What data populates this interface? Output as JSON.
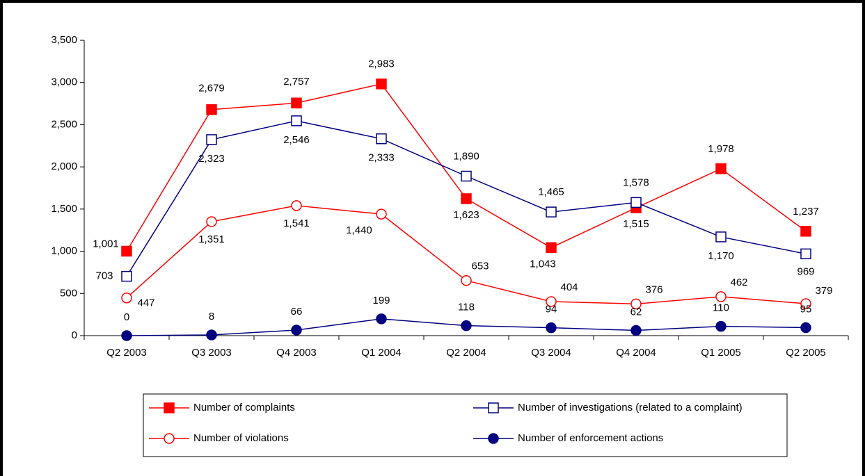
{
  "chart_data": {
    "type": "line",
    "categories": [
      "Q2 2003",
      "Q3 2003",
      "Q4 2003",
      "Q1 2004",
      "Q2 2004",
      "Q3 2004",
      "Q4 2004",
      "Q1 2005",
      "Q2 2005"
    ],
    "ylim": [
      0,
      3500
    ],
    "yticks": [
      0,
      500,
      {
        "value": 1000,
        "label": "1,000"
      },
      {
        "value": 1500,
        "label": "1,500"
      },
      {
        "value": 2000,
        "label": "2,000"
      },
      {
        "value": 2500,
        "label": "2,500"
      },
      {
        "value": 3000,
        "label": "3,000"
      },
      {
        "value": 3500,
        "label": "3,500"
      }
    ],
    "series": [
      {
        "name": "Number of complaints",
        "color": "#ff0000",
        "marker": "square",
        "filled": true,
        "values": [
          1001,
          2679,
          2757,
          2983,
          1623,
          1043,
          1515,
          1978,
          1237
        ],
        "value_labels": [
          "1,001",
          "2,679",
          "2,757",
          "2,983",
          "1,623",
          "1,043",
          "1,515",
          "1,978",
          "1,237"
        ]
      },
      {
        "name": "Number of investigations (related to a complaint)",
        "color": "#000080",
        "marker": "square",
        "filled": false,
        "values": [
          703,
          2323,
          2546,
          2333,
          1890,
          1465,
          1578,
          1170,
          969
        ],
        "value_labels": [
          "703",
          "2,323",
          "2,546",
          "2,333",
          "1,890",
          "1,465",
          "1,578",
          "1,170",
          "969"
        ]
      },
      {
        "name": "Number of violations",
        "color": "#ff0000",
        "marker": "circle",
        "filled": false,
        "values": [
          447,
          1351,
          1541,
          1440,
          653,
          404,
          376,
          462,
          379
        ],
        "value_labels": [
          "447",
          "1,351",
          "1,541",
          "1,440",
          "653",
          "404",
          "376",
          "462",
          "379"
        ]
      },
      {
        "name": "Number of enforcement actions",
        "color": "#000080",
        "marker": "circle",
        "filled": true,
        "values": [
          0,
          8,
          66,
          199,
          118,
          94,
          62,
          110,
          95
        ]
      }
    ]
  }
}
